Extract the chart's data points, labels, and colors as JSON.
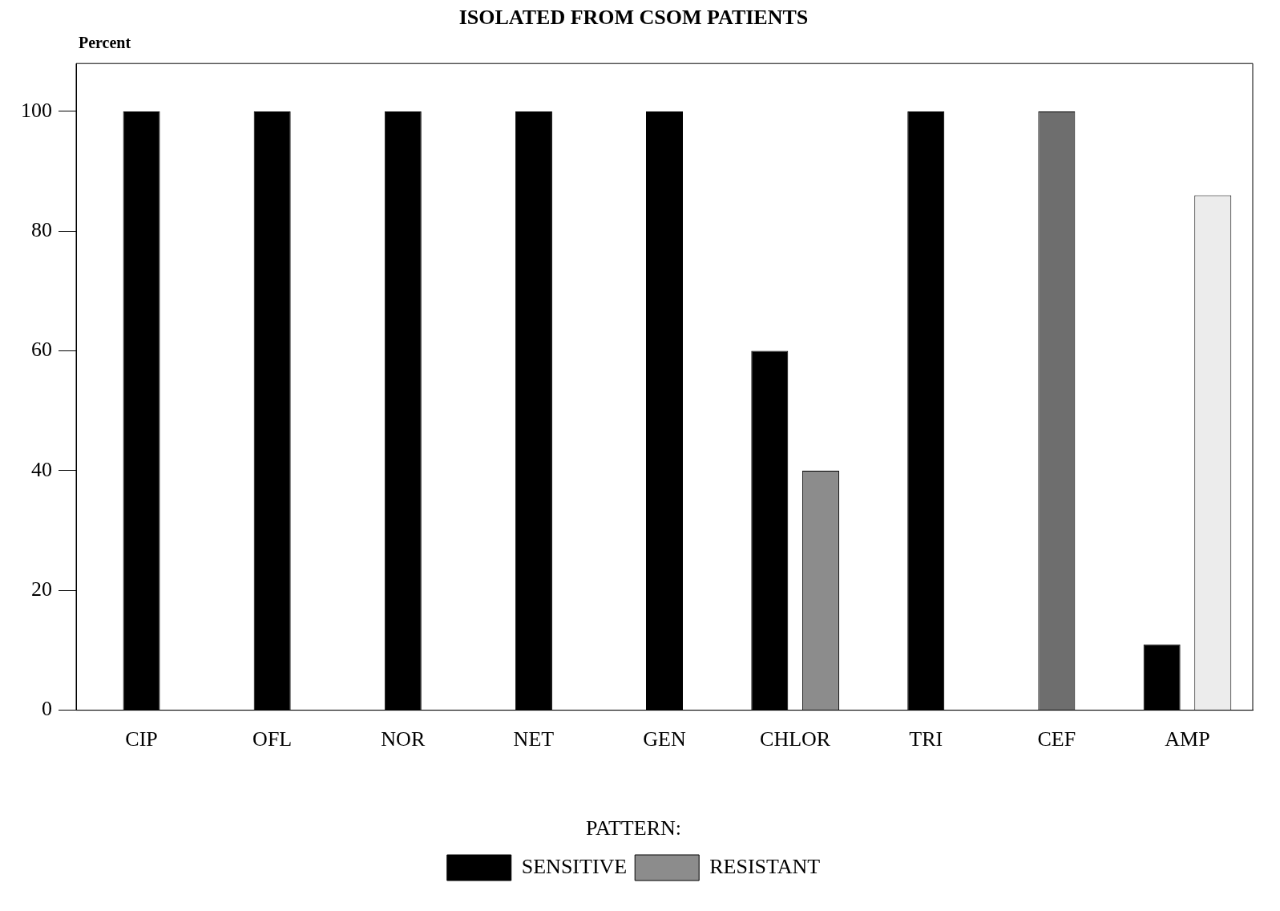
{
  "chart_data": {
    "type": "bar",
    "title": "ISOLATED FROM CSOM PATIENTS",
    "ylabel": "Percent",
    "legend_title": "PATTERN:",
    "categories": [
      "CIP",
      "OFL",
      "NOR",
      "NET",
      "GEN",
      "CHLOR",
      "TRI",
      "CEF",
      "AMP"
    ],
    "series": [
      {
        "name": "SENSITIVE",
        "color": "#000000",
        "values": [
          100,
          100,
          100,
          100,
          100,
          60,
          100,
          null,
          11
        ]
      },
      {
        "name": "RESISTANT",
        "color": "#8c8c8c",
        "colors": [
          null,
          null,
          null,
          null,
          null,
          "#8c8c8c",
          null,
          "#6e6e6e",
          "#ececec"
        ],
        "values": [
          null,
          null,
          null,
          null,
          null,
          40,
          null,
          100,
          86
        ]
      }
    ],
    "ylim": [
      0,
      108
    ],
    "yticks": [
      0,
      20,
      40,
      60,
      80,
      100
    ],
    "grid": false,
    "legend": "bottom"
  }
}
